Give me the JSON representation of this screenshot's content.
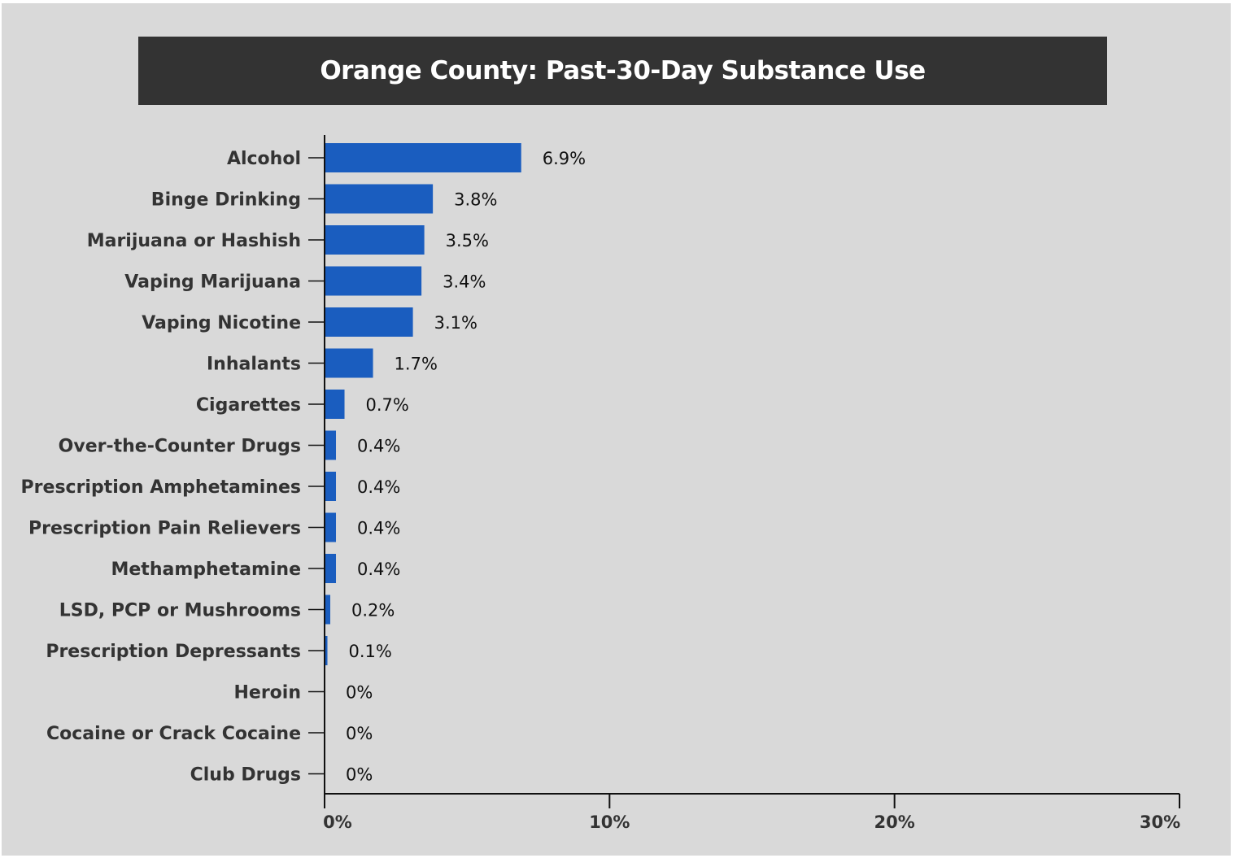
{
  "title": "Orange County: Past-30-Day Substance Use",
  "chart_data": {
    "type": "bar",
    "orientation": "horizontal",
    "title": "Orange County: Past-30-Day Substance Use",
    "xlabel": "",
    "ylabel": "",
    "xlim": [
      0,
      30
    ],
    "x_ticks": [
      "0%",
      "10%",
      "20%",
      "30%"
    ],
    "x_tick_values": [
      0,
      10,
      20,
      30
    ],
    "grid": false,
    "bar_color": "#1a5dbf",
    "categories": [
      "Alcohol",
      "Binge Drinking",
      "Marijuana or Hashish",
      "Vaping Marijuana",
      "Vaping Nicotine",
      "Inhalants",
      "Cigarettes",
      "Over-the-Counter Drugs",
      "Prescription Amphetamines",
      "Prescription Pain Relievers",
      "Methamphetamine",
      "LSD, PCP or Mushrooms",
      "Prescription Depressants",
      "Heroin",
      "Cocaine or Crack Cocaine",
      "Club Drugs"
    ],
    "values": [
      6.9,
      3.8,
      3.5,
      3.4,
      3.1,
      1.7,
      0.7,
      0.4,
      0.4,
      0.4,
      0.4,
      0.2,
      0.1,
      0,
      0,
      0
    ],
    "value_labels": [
      "6.9%",
      "3.8%",
      "3.5%",
      "3.4%",
      "3.1%",
      "1.7%",
      "0.7%",
      "0.4%",
      "0.4%",
      "0.4%",
      "0.4%",
      "0.2%",
      "0.1%",
      "0%",
      "0%",
      "0%"
    ]
  }
}
